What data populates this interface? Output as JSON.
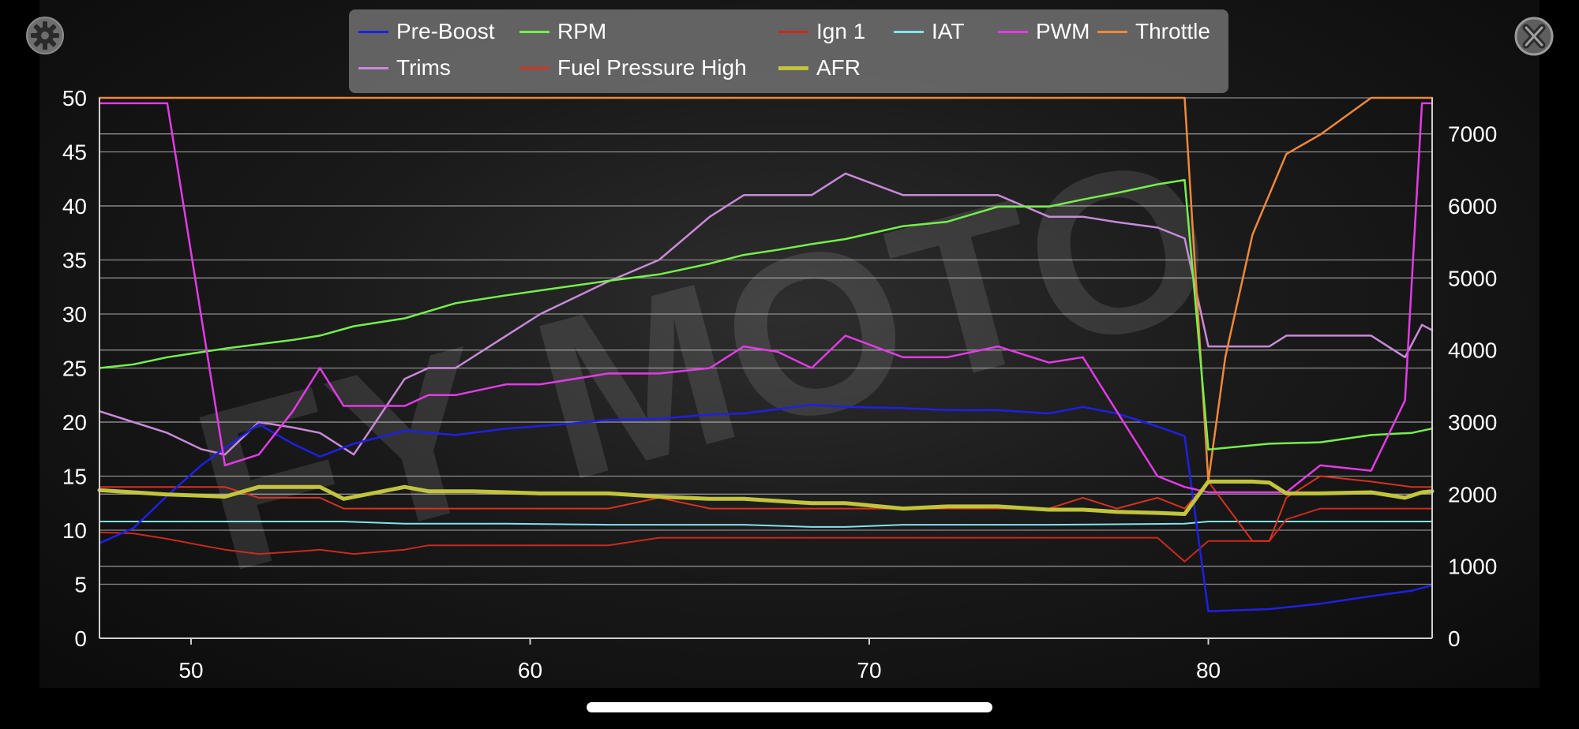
{
  "controls": {
    "settings_icon": "gear-icon",
    "close_icon": "close-circle-icon"
  },
  "watermark": "FY MOTO",
  "chart_data": {
    "type": "line",
    "title": "",
    "xlabel": "",
    "ylabel": "",
    "xlim": [
      47.3,
      86.6
    ],
    "ylim": [
      0,
      50
    ],
    "y2lim": [
      0,
      7500
    ],
    "x_ticks": [
      50,
      60,
      70,
      80
    ],
    "y_ticks": [
      0,
      5,
      10,
      15,
      20,
      25,
      30,
      35,
      40,
      45,
      50
    ],
    "y2_ticks": [
      0,
      1000,
      2000,
      3000,
      4000,
      5000,
      6000,
      7000
    ],
    "grid": true,
    "legend_position": "top-center",
    "series": [
      {
        "name": "Pre-Boost",
        "color": "#1f1fe6",
        "width": 2.5,
        "axis": "left",
        "x": [
          47.3,
          48.3,
          49.3,
          50.3,
          51.0,
          52.0,
          53.0,
          53.8,
          54.8,
          56.3,
          57.8,
          59.3,
          61.0,
          62.3,
          63.8,
          65.3,
          66.3,
          67.3,
          68.3,
          69.3,
          71.0,
          72.3,
          73.8,
          75.3,
          76.3,
          77.3,
          78.5,
          79.3,
          80.0,
          81.8,
          83.3,
          84.8,
          86.0,
          86.6
        ],
        "y": [
          8.8,
          10.2,
          13.2,
          16.0,
          17.6,
          19.8,
          18.0,
          16.8,
          18.0,
          19.2,
          18.8,
          19.4,
          19.8,
          20.2,
          20.3,
          20.7,
          20.8,
          21.2,
          21.6,
          21.4,
          21.3,
          21.1,
          21.1,
          20.8,
          21.4,
          20.8,
          19.6,
          18.7,
          2.5,
          2.7,
          3.2,
          3.9,
          4.4,
          4.9
        ]
      },
      {
        "name": "RPM",
        "color": "#74f04a",
        "width": 2.5,
        "axis": "right",
        "x": [
          47.3,
          48.3,
          49.3,
          51.0,
          53.0,
          53.8,
          54.8,
          56.3,
          57.8,
          59.3,
          60.5,
          62.3,
          63.8,
          65.3,
          66.3,
          67.3,
          68.3,
          69.3,
          71.0,
          72.3,
          73.8,
          75.3,
          76.3,
          77.3,
          78.5,
          79.3,
          80.0,
          81.8,
          83.3,
          84.8,
          86.0,
          86.6
        ],
        "y": [
          3750,
          3800,
          3900,
          4020,
          4140,
          4200,
          4330,
          4440,
          4650,
          4760,
          4840,
          4960,
          5050,
          5200,
          5320,
          5390,
          5470,
          5540,
          5720,
          5780,
          5990,
          5990,
          6090,
          6180,
          6300,
          6360,
          2620,
          2700,
          2720,
          2820,
          2850,
          2910
        ]
      },
      {
        "name": "Ign 1",
        "color": "#c92a1e",
        "width": 2,
        "axis": "left",
        "x": [
          47.3,
          48.3,
          49.3,
          50.3,
          51.0,
          52.0,
          53.0,
          53.8,
          54.8,
          56.3,
          57.0,
          59.3,
          61.0,
          62.3,
          63.8,
          65.3,
          66.3,
          67.3,
          68.3,
          69.3,
          71.0,
          72.3,
          73.8,
          75.3,
          76.3,
          77.3,
          78.5,
          79.3,
          80.0,
          81.3,
          81.8,
          82.3,
          83.3,
          84.8,
          86.0,
          86.6
        ],
        "y": [
          9.8,
          9.7,
          9.2,
          8.6,
          8.2,
          7.8,
          8.0,
          8.2,
          7.8,
          8.2,
          8.6,
          8.6,
          8.6,
          8.6,
          9.3,
          9.3,
          9.3,
          9.3,
          9.3,
          9.3,
          9.3,
          9.3,
          9.3,
          9.3,
          9.3,
          9.3,
          9.3,
          7.1,
          9.0,
          9.0,
          9.0,
          11.0,
          12.0,
          12.0,
          12.0,
          12.0
        ]
      },
      {
        "name": "IAT",
        "color": "#7fe5ec",
        "width": 2,
        "axis": "left",
        "x": [
          47.3,
          50.3,
          54.5,
          56.3,
          59.3,
          62.3,
          65.3,
          66.3,
          68.3,
          69.3,
          71.0,
          75.3,
          79.3,
          80.0,
          86.6
        ],
        "y": [
          10.8,
          10.8,
          10.8,
          10.6,
          10.6,
          10.5,
          10.5,
          10.5,
          10.3,
          10.3,
          10.5,
          10.5,
          10.6,
          10.8,
          10.8
        ]
      },
      {
        "name": "PWM",
        "color": "#e23be6",
        "width": 2.5,
        "axis": "left",
        "x": [
          47.3,
          48.3,
          49.3,
          51.0,
          52.0,
          53.0,
          53.8,
          54.5,
          56.3,
          57.0,
          57.8,
          59.3,
          60.3,
          62.3,
          63.8,
          65.3,
          66.3,
          67.3,
          68.3,
          69.3,
          71.0,
          72.3,
          73.8,
          75.3,
          76.3,
          77.3,
          78.5,
          79.3,
          80.0,
          81.3,
          82.3,
          83.3,
          84.8,
          85.8,
          86.3,
          86.6
        ],
        "y": [
          49.5,
          49.5,
          49.5,
          16.0,
          17.0,
          21.0,
          25.0,
          21.5,
          21.5,
          22.5,
          22.5,
          23.5,
          23.5,
          24.5,
          24.5,
          25.0,
          27.0,
          26.5,
          25.0,
          28.0,
          26.0,
          26.0,
          27.0,
          25.5,
          26.0,
          21.0,
          15.0,
          14.0,
          13.5,
          13.5,
          13.5,
          16.0,
          15.5,
          22.0,
          49.5,
          49.5
        ]
      },
      {
        "name": "Throttle",
        "color": "#f0883a",
        "width": 2.5,
        "axis": "right",
        "x": [
          47.3,
          79.0,
          79.3,
          80.0,
          80.5,
          81.3,
          82.3,
          83.3,
          84.8,
          86.6
        ],
        "y": [
          7500,
          7500,
          7500,
          2180,
          3900,
          5600,
          6720,
          6990,
          7500,
          7500
        ]
      },
      {
        "name": "Trims",
        "color": "#c88ad8",
        "width": 2.5,
        "axis": "left",
        "x": [
          47.3,
          48.3,
          49.3,
          50.3,
          51.0,
          52.0,
          53.0,
          53.8,
          54.8,
          56.3,
          57.0,
          57.8,
          59.3,
          60.3,
          62.3,
          63.8,
          65.3,
          66.3,
          67.3,
          68.3,
          69.3,
          71.0,
          72.3,
          73.8,
          75.3,
          76.3,
          77.3,
          78.5,
          79.3,
          80.0,
          81.3,
          81.8,
          82.3,
          83.3,
          84.8,
          85.8,
          86.3,
          86.6
        ],
        "y": [
          21.0,
          20.0,
          19.0,
          17.5,
          17.0,
          20.0,
          19.5,
          19.0,
          17.0,
          24.0,
          25.0,
          25.0,
          28.0,
          30.0,
          33.0,
          35.0,
          39.0,
          41.0,
          41.0,
          41.0,
          43.0,
          41.0,
          41.0,
          41.0,
          39.0,
          39.0,
          38.5,
          38.0,
          37.0,
          27.0,
          27.0,
          27.0,
          28.0,
          28.0,
          28.0,
          26.0,
          29.0,
          28.5
        ]
      },
      {
        "name": "Fuel Pressure High",
        "color": "#d8311f",
        "width": 2,
        "axis": "left",
        "x": [
          47.3,
          48.3,
          49.3,
          51.0,
          52.0,
          53.0,
          53.8,
          54.5,
          56.3,
          57.0,
          59.3,
          61.0,
          62.3,
          63.8,
          65.3,
          66.3,
          67.3,
          68.3,
          69.3,
          71.0,
          72.3,
          73.8,
          75.3,
          76.3,
          77.3,
          78.5,
          79.3,
          80.0,
          81.3,
          81.8,
          82.3,
          83.3,
          84.8,
          86.0,
          86.6
        ],
        "y": [
          14.0,
          14.0,
          14.0,
          14.0,
          13.0,
          13.0,
          13.0,
          12.0,
          12.0,
          12.0,
          12.0,
          12.0,
          12.0,
          13.0,
          12.0,
          12.0,
          12.0,
          12.0,
          12.0,
          12.0,
          12.0,
          12.0,
          12.0,
          13.0,
          12.0,
          13.0,
          12.0,
          14.5,
          9.0,
          9.0,
          13.0,
          15.0,
          14.5,
          14.0,
          14.0
        ]
      },
      {
        "name": "AFR",
        "color": "#c2c43c",
        "width": 5,
        "axis": "left",
        "x": [
          47.3,
          48.3,
          49.3,
          50.3,
          51.0,
          52.0,
          53.0,
          53.8,
          54.5,
          56.3,
          57.0,
          58.3,
          59.3,
          60.3,
          62.3,
          63.8,
          65.3,
          66.3,
          67.3,
          68.3,
          69.3,
          71.0,
          72.3,
          73.8,
          75.3,
          76.3,
          77.3,
          78.5,
          79.3,
          80.0,
          81.3,
          81.8,
          82.3,
          83.3,
          84.8,
          85.8,
          86.3,
          86.6
        ],
        "y": [
          13.7,
          13.5,
          13.3,
          13.2,
          13.1,
          14.0,
          14.0,
          14.0,
          12.9,
          14.0,
          13.6,
          13.6,
          13.5,
          13.4,
          13.4,
          13.1,
          12.9,
          12.9,
          12.7,
          12.5,
          12.5,
          12.0,
          12.2,
          12.2,
          11.9,
          11.9,
          11.7,
          11.6,
          11.5,
          14.5,
          14.5,
          14.4,
          13.4,
          13.4,
          13.5,
          13.0,
          13.5,
          13.6
        ]
      }
    ],
    "legend_order": [
      "Pre-Boost",
      "RPM",
      "Ign 1",
      "IAT",
      "PWM",
      "Throttle",
      "Trims",
      "Fuel Pressure High",
      "AFR"
    ]
  }
}
